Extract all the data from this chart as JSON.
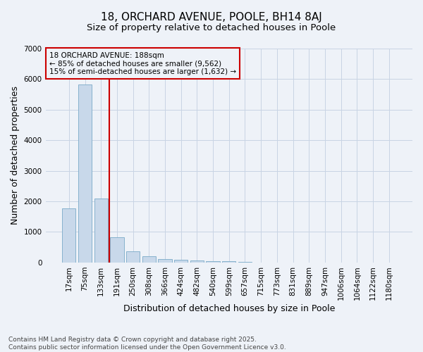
{
  "title_line1": "18, ORCHARD AVENUE, POOLE, BH14 8AJ",
  "title_line2": "Size of property relative to detached houses in Poole",
  "xlabel": "Distribution of detached houses by size in Poole",
  "ylabel": "Number of detached properties",
  "bar_color": "#c8d8ea",
  "bar_edge_color": "#7aaac8",
  "categories": [
    "17sqm",
    "75sqm",
    "133sqm",
    "191sqm",
    "250sqm",
    "308sqm",
    "366sqm",
    "424sqm",
    "482sqm",
    "540sqm",
    "599sqm",
    "657sqm",
    "715sqm",
    "773sqm",
    "831sqm",
    "889sqm",
    "947sqm",
    "1006sqm",
    "1064sqm",
    "1122sqm",
    "1180sqm"
  ],
  "values": [
    1780,
    5820,
    2090,
    820,
    360,
    200,
    115,
    90,
    70,
    50,
    35,
    15,
    0,
    0,
    0,
    0,
    0,
    0,
    0,
    0,
    0
  ],
  "ylim": [
    0,
    7000
  ],
  "yticks": [
    0,
    1000,
    2000,
    3000,
    4000,
    5000,
    6000,
    7000
  ],
  "vline_color": "#cc0000",
  "annotation_text": "18 ORCHARD AVENUE: 188sqm\n← 85% of detached houses are smaller (9,562)\n15% of semi-detached houses are larger (1,632) →",
  "annotation_box_color": "#cc0000",
  "annotation_bg_color": "#eef2f8",
  "grid_color": "#c8d4e4",
  "background_color": "#eef2f8",
  "footer_line1": "Contains HM Land Registry data © Crown copyright and database right 2025.",
  "footer_line2": "Contains public sector information licensed under the Open Government Licence v3.0.",
  "title_fontsize": 11,
  "subtitle_fontsize": 9.5,
  "axis_label_fontsize": 9,
  "tick_fontsize": 7.5,
  "annotation_fontsize": 7.5,
  "footer_fontsize": 6.5
}
